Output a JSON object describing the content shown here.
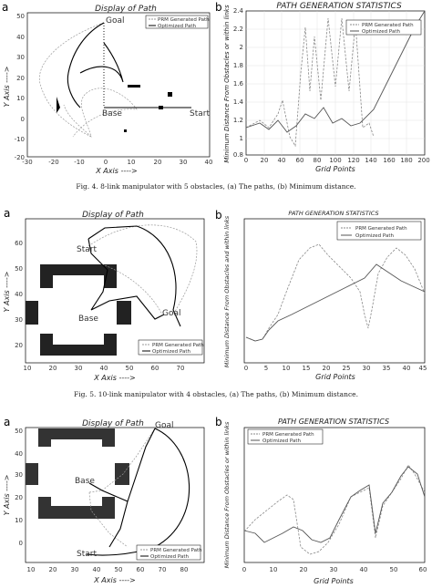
{
  "figures": [
    {
      "left": {
        "letter": "a",
        "title": "Display of Path",
        "xlabel": "X Axis ---->",
        "ylabel": "Y Axis ---->",
        "xticks": [
          "-30",
          "-20",
          "-10",
          "0",
          "10",
          "20",
          "30",
          "40"
        ],
        "yticks": [
          "50",
          "40",
          "30",
          "20",
          "10",
          "0",
          "-10",
          "-20"
        ],
        "legend": [
          "PRM Generated Path",
          "Optimized Path"
        ],
        "annotations": [
          "Goal",
          "Base",
          "Start"
        ]
      },
      "right": {
        "letter": "b",
        "title": "PATH GENERATION STATISTICS",
        "xlabel": "Grid Points",
        "ylabel": "Minimum Distance From Obstacles or within links",
        "xticks": [
          "0",
          "20",
          "40",
          "60",
          "80",
          "100",
          "120",
          "140",
          "160",
          "180",
          "200"
        ],
        "yticks": [
          "2.4",
          "2.2",
          "2",
          "1.8",
          "1.6",
          "1.4",
          "1.2",
          "1",
          "0.8"
        ],
        "legend": [
          "PRM Generated Path",
          "Optimized Path"
        ]
      },
      "caption": "Fig. 4.   8-link manipulator with 5 obstacles, (a) The paths, (b) Minimum distance."
    },
    {
      "left": {
        "letter": "a",
        "title": "Display of Path",
        "xlabel": "X Axis ---->",
        "ylabel": "Y Axis ---->",
        "xticks": [
          "10",
          "20",
          "30",
          "40",
          "50",
          "60",
          "70"
        ],
        "yticks": [
          "60",
          "50",
          "40",
          "30",
          "20"
        ],
        "legend": [
          "PRM Generated Path",
          "Optimized Path"
        ],
        "annotations": [
          "Start",
          "Base",
          "Goal"
        ]
      },
      "right": {
        "letter": "b",
        "title": "PATH GENERATION STATISTICS",
        "xlabel": "Grid Points",
        "ylabel": "Minimum Distance From Obstacles and within links",
        "xticks": [
          "0",
          "5",
          "10",
          "15",
          "20",
          "25",
          "30",
          "35",
          "40",
          "45"
        ],
        "yticks": [],
        "legend": [
          "PRM Generated Path",
          "Optimized Path"
        ]
      },
      "caption": "Fig. 5.   10-link manipulator with 4 obstacles, (a) The paths, (b) Minimum distance."
    },
    {
      "left": {
        "letter": "a",
        "title": "Display of Path",
        "xlabel": "X Axis ---->",
        "ylabel": "Y Axis ---->",
        "xticks": [
          "10",
          "20",
          "30",
          "40",
          "50",
          "60",
          "70",
          "80"
        ],
        "yticks": [
          "50",
          "40",
          "30",
          "20",
          "10",
          "0"
        ],
        "legend": [
          "PRM Generated Path",
          "Optimized Path"
        ],
        "annotations": [
          "Goal",
          "Base",
          "Start"
        ]
      },
      "right": {
        "letter": "b",
        "title": "PATH GENERATION STATISTICS",
        "xlabel": "Grid Points",
        "ylabel": "Minimum Distance From Obstacles or within links",
        "xticks": [
          "0",
          "10",
          "20",
          "30",
          "40",
          "50",
          "60"
        ],
        "yticks": [],
        "legend": [
          "PRM Generated Path",
          "Optimized Path"
        ]
      },
      "caption": ""
    }
  ]
}
